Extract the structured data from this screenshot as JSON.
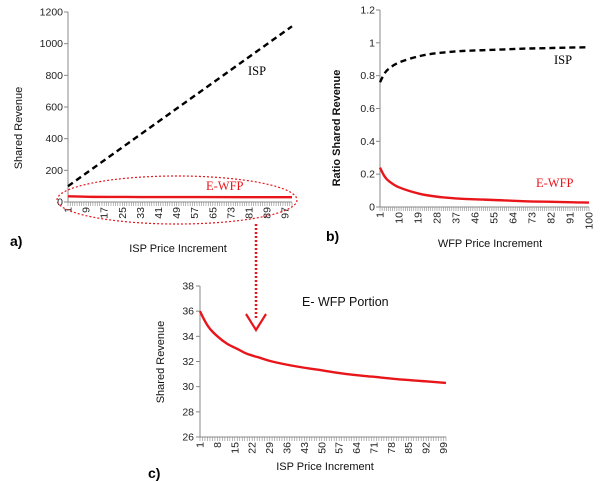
{
  "chart_data": [
    {
      "panel": "a)",
      "type": "line",
      "xlabel": "ISP Price Increment",
      "ylabel": "Shared Revenue",
      "ylim": [
        0,
        1200
      ],
      "yticks": [
        "0",
        "200",
        "400",
        "600",
        "800",
        "1000",
        "1200"
      ],
      "xticks": [
        "1",
        "9",
        "17",
        "25",
        "33",
        "41",
        "49",
        "57",
        "65",
        "73",
        "81",
        "89",
        "97"
      ],
      "xrange": [
        1,
        100
      ],
      "series": [
        {
          "name": "ISP",
          "style": "dashed",
          "color": "#000000",
          "x": [
            1,
            100
          ],
          "y": [
            100,
            1110
          ]
        },
        {
          "name": "E-WFP",
          "style": "solid",
          "color": "#e8161b",
          "x": [
            1,
            10,
            20,
            40,
            60,
            80,
            100
          ],
          "y": [
            36,
            33,
            32,
            31.2,
            30.8,
            30.5,
            30.3
          ]
        }
      ],
      "grid": false
    },
    {
      "panel": "b)",
      "type": "line",
      "xlabel": "WFP Price Increment",
      "ylabel": "Ratio Shared Revenue",
      "ylim": [
        0,
        1.2
      ],
      "yticks": [
        "0",
        "0.2",
        "0.4",
        "0.6",
        "0.8",
        "1",
        "1.2"
      ],
      "xticks": [
        "1",
        "10",
        "19",
        "28",
        "37",
        "46",
        "55",
        "64",
        "73",
        "82",
        "91",
        "100"
      ],
      "xrange": [
        1,
        100
      ],
      "series": [
        {
          "name": "ISP",
          "style": "dashed",
          "color": "#000000",
          "x": [
            1,
            3,
            5,
            10,
            20,
            30,
            40,
            50,
            60,
            70,
            80,
            90,
            100
          ],
          "y": [
            0.76,
            0.81,
            0.84,
            0.88,
            0.92,
            0.94,
            0.95,
            0.955,
            0.96,
            0.965,
            0.968,
            0.971,
            0.973
          ]
        },
        {
          "name": "E-WFP",
          "style": "solid",
          "color": "#e8161b",
          "x": [
            1,
            3,
            5,
            10,
            20,
            30,
            40,
            50,
            60,
            70,
            80,
            90,
            100
          ],
          "y": [
            0.24,
            0.19,
            0.16,
            0.12,
            0.08,
            0.06,
            0.05,
            0.045,
            0.04,
            0.035,
            0.032,
            0.029,
            0.027
          ]
        }
      ],
      "grid": false
    },
    {
      "panel": "c)",
      "type": "line",
      "title": "E- WFP Portion",
      "xlabel": "ISP Price Increment",
      "ylabel": "Shared Revenue",
      "ylim": [
        26,
        38
      ],
      "yticks": [
        "26",
        "28",
        "30",
        "32",
        "34",
        "36",
        "38"
      ],
      "xticks": [
        "1",
        "8",
        "15",
        "22",
        "29",
        "36",
        "43",
        "50",
        "57",
        "64",
        "71",
        "78",
        "85",
        "92",
        "99"
      ],
      "xrange": [
        1,
        100
      ],
      "series": [
        {
          "name": "E-WFP",
          "style": "solid",
          "color": "#e8161b",
          "x": [
            1,
            3,
            5,
            8,
            12,
            16,
            20,
            25,
            30,
            40,
            50,
            60,
            70,
            80,
            90,
            100
          ],
          "y": [
            36.0,
            35.2,
            34.6,
            34.0,
            33.4,
            33.0,
            32.6,
            32.3,
            32.0,
            31.6,
            31.3,
            31.0,
            30.8,
            30.6,
            30.45,
            30.3
          ]
        }
      ],
      "grid": false
    }
  ],
  "colors": {
    "isp": "#000000",
    "ewfp": "#e8161b"
  }
}
